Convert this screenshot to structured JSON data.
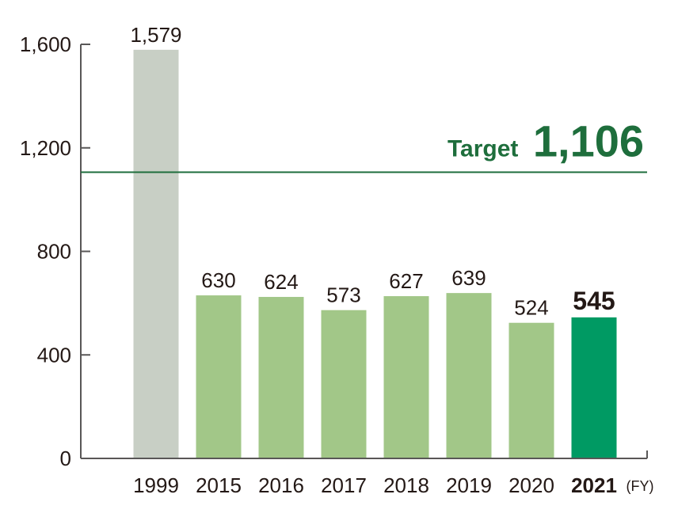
{
  "chart_data": {
    "type": "bar",
    "categories": [
      "1999",
      "2015",
      "2016",
      "2017",
      "2018",
      "2019",
      "2020",
      "2021"
    ],
    "values": [
      1579,
      630,
      624,
      573,
      627,
      639,
      524,
      545
    ],
    "value_labels": [
      "1,579",
      "630",
      "624",
      "573",
      "627",
      "639",
      "524",
      "545"
    ],
    "highlight_category": "2021",
    "y_ticks": [
      0,
      400,
      800,
      1200,
      1600
    ],
    "y_tick_labels": [
      "0",
      "400",
      "800",
      "1,200",
      "1,600"
    ],
    "ylim": [
      0,
      1700
    ],
    "x_unit": "(FY)",
    "target": {
      "label": "Target",
      "value": 1106,
      "value_label": "1,106"
    },
    "grid": false,
    "colors": {
      "baseline_bar": "#c8cfc5",
      "bar": "#a2c788",
      "highlight_bar": "#009a63",
      "target": "#1e6e3c",
      "axis": "#595757",
      "text": "#231815"
    }
  }
}
